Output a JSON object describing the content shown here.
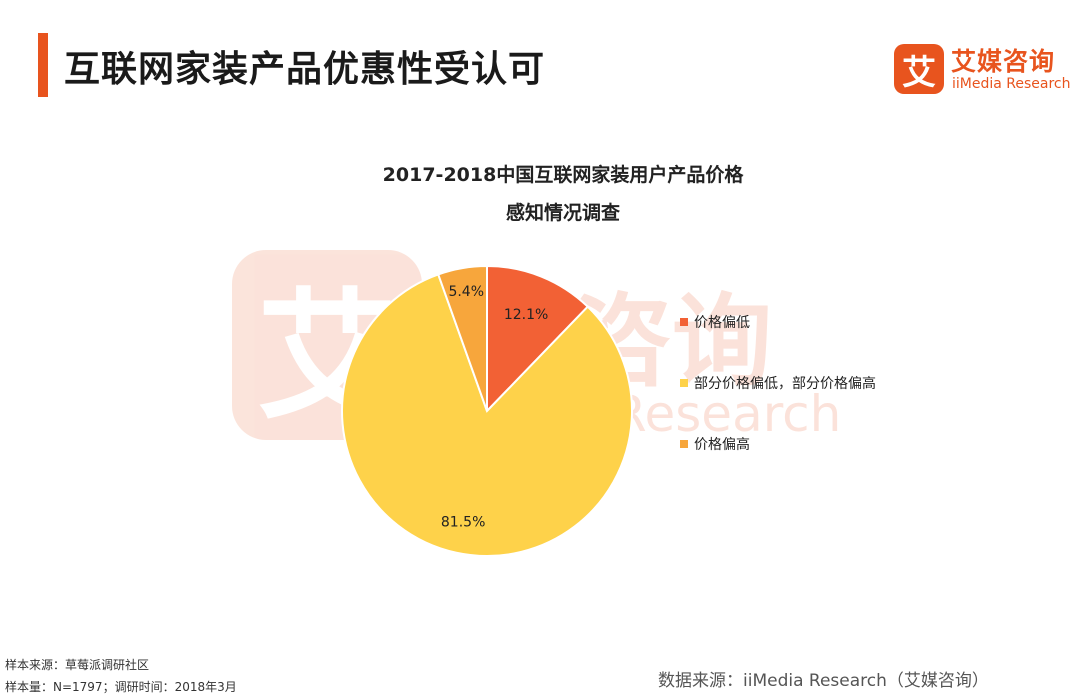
{
  "header": {
    "title": "互联网家装产品优惠性受认可",
    "logo_mark": "艾",
    "logo_cn": "艾媒咨询",
    "logo_en": "iiMedia Research"
  },
  "colors": {
    "accent": "#e8541e",
    "slice_low": "#f26135",
    "slice_mixed": "#fed24a",
    "slice_high": "#f7a63c"
  },
  "chart_data": {
    "type": "pie",
    "title_line1": "2017-2018中国互联网家装用户产品价格",
    "title_line2": "感知情况调查",
    "slices": [
      {
        "label": "价格偏低",
        "value": 12.1,
        "display": "12.1%",
        "color": "#f26135"
      },
      {
        "label": "部分价格偏低，部分价格偏高",
        "value": 81.5,
        "display": "81.5%",
        "color": "#fed24a"
      },
      {
        "label": "价格偏高",
        "value": 5.4,
        "display": "5.4%",
        "color": "#f7a63c"
      }
    ],
    "legend_position": "right"
  },
  "footer": {
    "sample_source": "样本来源：草莓派调研社区",
    "sample_size": "样本量：N=1797；调研时间：2018年3月",
    "data_source": "数据来源：iiMedia Research（艾媒咨询）"
  }
}
